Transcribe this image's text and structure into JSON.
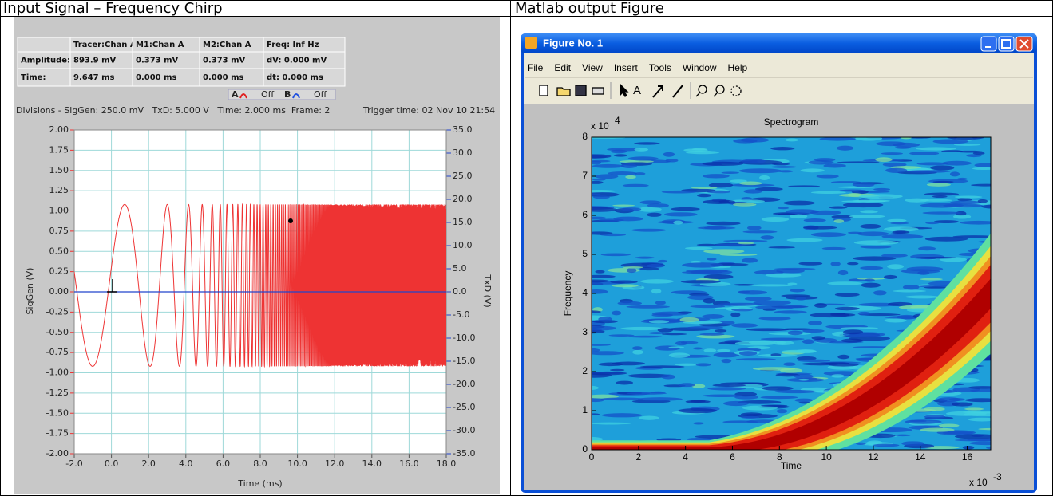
{
  "table": {
    "headers": [
      "Input Signal – Frequency Chirp",
      "Matlab output Figure"
    ]
  },
  "scope": {
    "measurements": [
      [
        "",
        "Tracer:Chan A",
        "M1:Chan A",
        "M2:Chan A",
        "Freq: Inf Hz"
      ],
      [
        "Amplitude:",
        "893.9 mV",
        "0.373 mV",
        "0.373 mV",
        "dV: 0.000 mV"
      ],
      [
        "Time:",
        "9.647 ms",
        "0.000 ms",
        "0.000 ms",
        "dt: 0.000 ms"
      ]
    ],
    "channels": [
      {
        "name": "A",
        "state": "Off",
        "color": "#e02020"
      },
      {
        "name": "B",
        "state": "Off",
        "color": "#2050e0"
      }
    ],
    "divisions": "Divisions - SigGen: 250.0 mV   TxD: 5.000 V   Time: 2.000 ms  Frame: 2",
    "trigger_time": "Trigger time: 02 Nov 10 21:54",
    "x_label": "Time (ms)",
    "y_label": "SigGen (V)",
    "y2_label": "TxD (V)",
    "y_color": "#ee3333",
    "y2_color": "#2244cc",
    "grid_color": "#9ed9d9",
    "xlim": [
      -2,
      18
    ],
    "xticks": [
      {
        "value": -2,
        "label": "-2.0"
      },
      {
        "value": 0,
        "label": "0.0"
      },
      {
        "value": 2,
        "label": "2.0"
      },
      {
        "value": 4,
        "label": "4.0"
      },
      {
        "value": 6,
        "label": "6.0"
      },
      {
        "value": 8,
        "label": "8.0"
      },
      {
        "value": 10,
        "label": "10.0"
      },
      {
        "value": 12,
        "label": "12.0"
      },
      {
        "value": 14,
        "label": "14.0"
      },
      {
        "value": 16,
        "label": "16.0"
      },
      {
        "value": 18,
        "label": "18.0"
      }
    ],
    "ylim": [
      -2,
      2
    ],
    "yticks": [
      {
        "value": 2,
        "label": "2.00"
      },
      {
        "value": 1.75,
        "label": "1.75"
      },
      {
        "value": 1.5,
        "label": "1.50"
      },
      {
        "value": 1.25,
        "label": "1.25"
      },
      {
        "value": 1,
        "label": "1.00"
      },
      {
        "value": 0.75,
        "label": "0.75"
      },
      {
        "value": 0.5,
        "label": "0.50"
      },
      {
        "value": 0.25,
        "label": "0.25"
      },
      {
        "value": 0,
        "label": "0.00"
      },
      {
        "value": -0.25,
        "label": "-0.25"
      },
      {
        "value": -0.5,
        "label": "-0.50"
      },
      {
        "value": -0.75,
        "label": "-0.75"
      },
      {
        "value": -1,
        "label": "-1.00"
      },
      {
        "value": -1.25,
        "label": "-1.25"
      },
      {
        "value": -1.5,
        "label": "-1.50"
      },
      {
        "value": -1.75,
        "label": "-1.75"
      },
      {
        "value": -2,
        "label": "-2.00"
      }
    ],
    "y2lim": [
      -35,
      35
    ],
    "y2ticks": [
      {
        "value": 35,
        "label": "35.0"
      },
      {
        "value": 30,
        "label": "30.0"
      },
      {
        "value": 25,
        "label": "25.0"
      },
      {
        "value": 20,
        "label": "20.0"
      },
      {
        "value": 15,
        "label": "15.0"
      },
      {
        "value": 10,
        "label": "10.0"
      },
      {
        "value": 5,
        "label": "5.0"
      },
      {
        "value": 0,
        "label": "0.0"
      },
      {
        "value": -5,
        "label": "-5.0"
      },
      {
        "value": -10,
        "label": "-10.0"
      },
      {
        "value": -15,
        "label": "-15.0"
      },
      {
        "value": -20,
        "label": "-20.0"
      },
      {
        "value": -25,
        "label": "-25.0"
      },
      {
        "value": -30,
        "label": "-30.0"
      },
      {
        "value": -35,
        "label": "-35.0"
      }
    ]
  },
  "matlab": {
    "window_title": "Figure No. 1",
    "menu": [
      "File",
      "Edit",
      "View",
      "Insert",
      "Tools",
      "Window",
      "Help"
    ],
    "title": "Spectrogram",
    "x_label": "Time",
    "y_label": "Frequency",
    "y_multiplier": "x 10",
    "y_exponent": "4",
    "x_multiplier": "x 10",
    "x_exponent": "-3",
    "xlim": [
      0,
      17
    ],
    "xticks": [
      0,
      2,
      4,
      6,
      8,
      10,
      12,
      14,
      16
    ],
    "ylim": [
      0,
      8
    ],
    "yticks": [
      0,
      1,
      2,
      3,
      4,
      5,
      6,
      7,
      8
    ]
  }
}
